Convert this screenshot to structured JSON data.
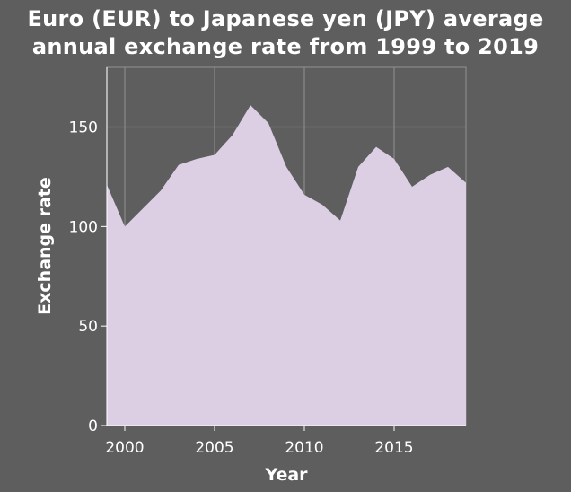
{
  "chart_data": {
    "type": "area",
    "title_line1": "Euro (EUR) to Japanese yen (JPY) average",
    "title_line2": "annual exchange rate from 1999 to 2019",
    "xlabel": "Year",
    "ylabel": "Exchange rate",
    "x": [
      1999,
      2000,
      2001,
      2002,
      2003,
      2004,
      2005,
      2006,
      2007,
      2008,
      2009,
      2010,
      2011,
      2012,
      2013,
      2014,
      2015,
      2016,
      2017,
      2018,
      2019
    ],
    "series": [
      {
        "values": [
          121,
          100,
          109,
          118,
          131,
          134,
          136,
          146,
          161,
          152,
          130,
          116,
          111,
          103,
          130,
          140,
          134,
          120,
          126,
          130,
          122
        ]
      }
    ],
    "xlim": [
      1999,
      2019
    ],
    "ylim": [
      0,
      180
    ],
    "xticks": [
      2000,
      2005,
      2010,
      2015
    ],
    "yticks": [
      0,
      50,
      100,
      150
    ],
    "grid": true,
    "colors": {
      "fill": "#dccfe4",
      "background": "#5e5e5e",
      "grid": "#8a8a8a",
      "axis": "#ffffff"
    }
  }
}
